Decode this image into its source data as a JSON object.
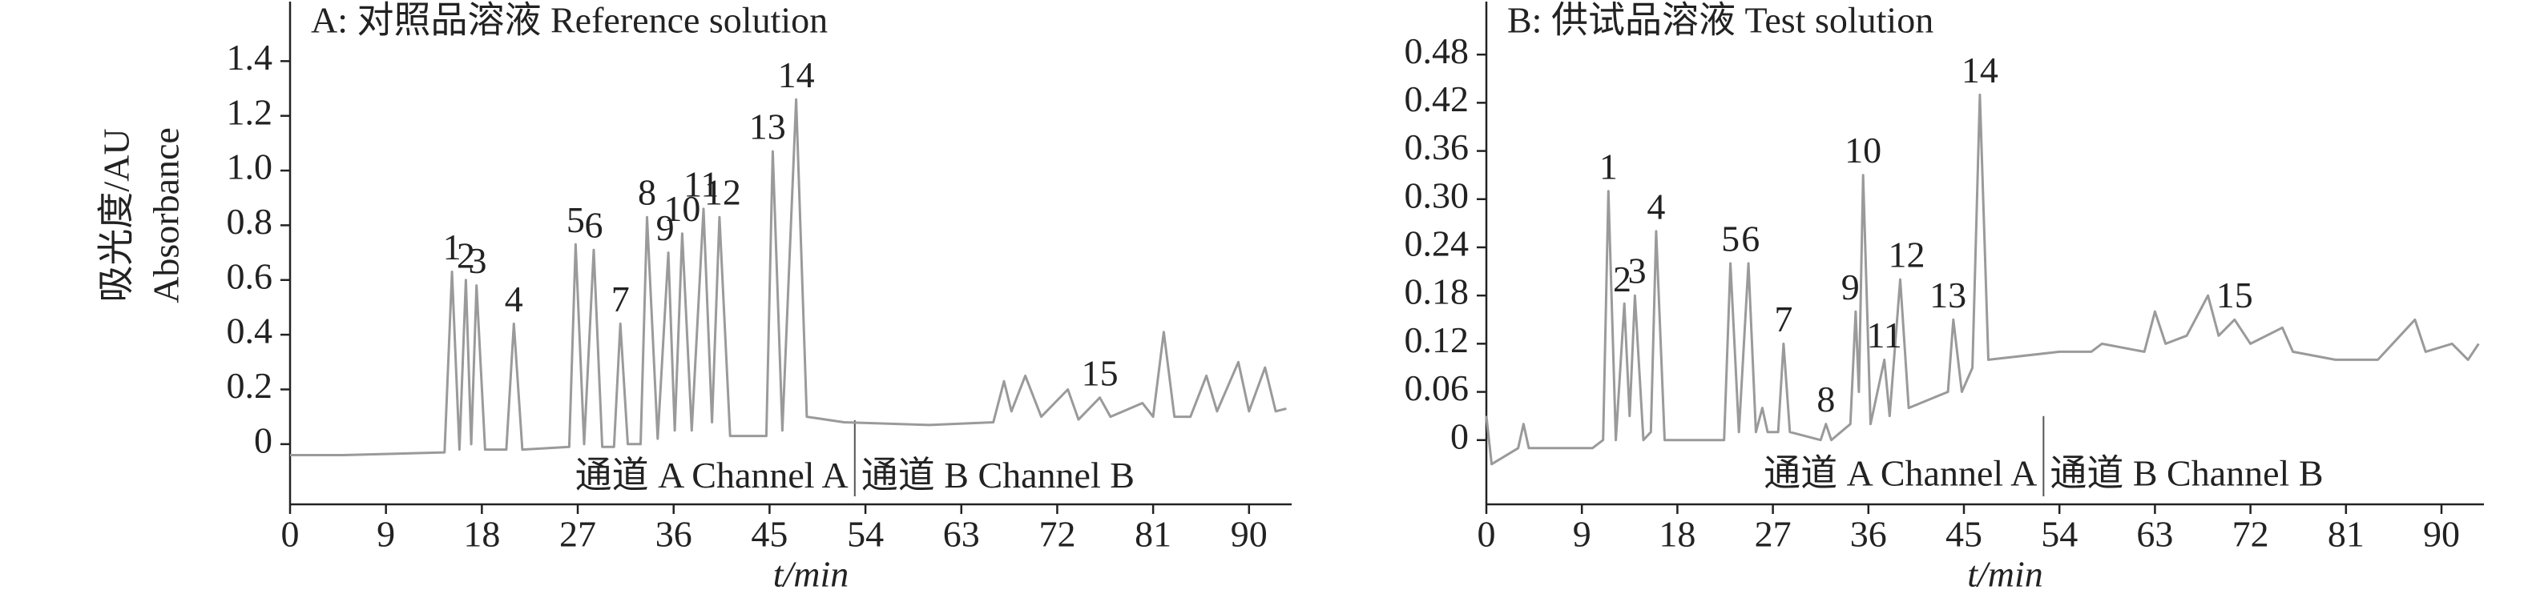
{
  "chart_data": [
    {
      "type": "line",
      "title": "A: 对照品溶液 Reference solution",
      "ylabel": [
        "吸光度/AU",
        "Absorbance"
      ],
      "xlabel": "t/min",
      "xlim": [
        0,
        94
      ],
      "xticks": [
        0,
        9,
        18,
        27,
        36,
        45,
        54,
        63,
        72,
        81,
        90
      ],
      "ylim": [
        -0.22,
        1.6
      ],
      "yticks": [
        0,
        0.2,
        0.4,
        0.6,
        0.8,
        {
          "value": 1,
          "label": "1.0"
        },
        1.2,
        1.4
      ],
      "channel_boundary": 53,
      "channel_labels": [
        "通道 A Channel A",
        "通道 B Channel B"
      ],
      "series": [
        {
          "color": "#9a9a9a",
          "x": [
            0,
            5,
            14.5,
            15.2,
            15.9,
            16.5,
            17,
            17.5,
            18.3,
            20.3,
            21,
            21.8,
            26.2,
            26.8,
            27.6,
            28.5,
            29.3,
            30.4,
            31,
            31.7,
            32.9,
            33.5,
            34.5,
            35.5,
            36.1,
            36.8,
            37.7,
            38.8,
            39.6,
            40.3,
            41.3,
            44.7,
            45.3,
            46.2,
            47.5,
            48.5,
            52,
            60,
            66,
            67,
            67.7,
            69,
            70.5,
            73,
            74,
            76,
            77,
            80,
            81,
            82,
            83,
            84.5,
            86,
            87,
            89,
            90,
            91.5,
            92.5,
            93.5
          ],
          "values": [
            -0.04,
            -0.04,
            -0.03,
            0.63,
            -0.02,
            0.6,
            0.0,
            0.58,
            -0.02,
            -0.02,
            0.44,
            -0.02,
            -0.01,
            0.73,
            0.0,
            0.71,
            -0.01,
            -0.01,
            0.44,
            0.0,
            0.0,
            0.83,
            0.02,
            0.7,
            0.05,
            0.77,
            0.05,
            0.86,
            0.08,
            0.83,
            0.03,
            0.03,
            1.07,
            0.05,
            1.26,
            0.1,
            0.08,
            0.07,
            0.08,
            0.23,
            0.12,
            0.25,
            0.1,
            0.2,
            0.09,
            0.17,
            0.1,
            0.15,
            0.1,
            0.41,
            0.1,
            0.1,
            0.25,
            0.12,
            0.3,
            0.12,
            0.28,
            0.12,
            0.13
          ]
        }
      ],
      "peaks": [
        {
          "label": "1",
          "time": 15.2,
          "height": 0.63
        },
        {
          "label": "2",
          "time": 16.5,
          "height": 0.6
        },
        {
          "label": "3",
          "time": 17.6,
          "height": 0.58
        },
        {
          "label": "4",
          "time": 21,
          "height": 0.44
        },
        {
          "label": "5",
          "time": 26.8,
          "height": 0.73
        },
        {
          "label": "6",
          "time": 28.5,
          "height": 0.71
        },
        {
          "label": "7",
          "time": 31,
          "height": 0.44
        },
        {
          "label": "8",
          "time": 33.5,
          "height": 0.83
        },
        {
          "label": "9",
          "time": 35.2,
          "height": 0.7
        },
        {
          "label": "10",
          "time": 36.8,
          "height": 0.77
        },
        {
          "label": "11",
          "time": 38.6,
          "height": 0.86
        },
        {
          "label": "12",
          "time": 40.6,
          "height": 0.83
        },
        {
          "label": "13",
          "time": 44.8,
          "height": 1.07
        },
        {
          "label": "14",
          "time": 47.5,
          "height": 1.26
        },
        {
          "label": "15",
          "time": 76,
          "height": 0.17
        }
      ]
    },
    {
      "type": "line",
      "title": "B: 供试品溶液 Test solution",
      "xlabel": "t/min",
      "xlim": [
        0,
        94
      ],
      "xticks": [
        0,
        9,
        18,
        27,
        36,
        45,
        54,
        63,
        72,
        81,
        90
      ],
      "ylim": [
        -0.08,
        0.54
      ],
      "yticks": [
        0,
        0.06,
        0.12,
        0.18,
        0.24,
        {
          "value": 0.3,
          "label": "0.30"
        },
        0.36,
        0.42,
        0.48
      ],
      "channel_boundary": 52.5,
      "channel_labels": [
        "通道 A Channel A",
        "通道 B  Channel B"
      ],
      "series": [
        {
          "color": "#9a9a9a",
          "x": [
            0,
            0.5,
            3,
            3.5,
            4,
            10,
            11,
            11.5,
            12.2,
            13,
            13.5,
            14,
            14.8,
            15.5,
            16,
            16.8,
            22.4,
            23,
            23.8,
            24.7,
            25.4,
            26,
            26.5,
            27.5,
            28,
            28.6,
            31.5,
            32,
            32.5,
            34.3,
            34.8,
            35.1,
            35.5,
            36.2,
            37.5,
            38,
            39,
            39.8,
            43.5,
            44,
            44.8,
            45.8,
            46.5,
            47.3,
            54,
            57,
            58,
            62,
            63,
            64,
            66,
            68,
            69,
            70.5,
            72,
            75,
            76,
            80,
            84,
            87.5,
            88.5,
            91,
            92.5,
            93.5
          ],
          "values": [
            0.03,
            -0.03,
            -0.01,
            0.02,
            -0.01,
            -0.01,
            0.0,
            0.31,
            0.0,
            0.17,
            0.03,
            0.18,
            0.0,
            0.01,
            0.26,
            0.0,
            0.0,
            0.22,
            0.01,
            0.22,
            0.01,
            0.04,
            0.01,
            0.01,
            0.12,
            0.01,
            0.0,
            0.02,
            0.0,
            0.02,
            0.16,
            0.06,
            0.33,
            0.02,
            0.1,
            0.03,
            0.2,
            0.04,
            0.06,
            0.15,
            0.06,
            0.09,
            0.43,
            0.1,
            0.11,
            0.11,
            0.12,
            0.11,
            0.16,
            0.12,
            0.13,
            0.18,
            0.13,
            0.15,
            0.12,
            0.14,
            0.11,
            0.1,
            0.1,
            0.15,
            0.11,
            0.12,
            0.1,
            0.12
          ]
        }
      ],
      "peaks": [
        {
          "label": "1",
          "time": 11.5,
          "height": 0.31
        },
        {
          "label": "2",
          "time": 12.8,
          "height": 0.17
        },
        {
          "label": "3",
          "time": 14.2,
          "height": 0.18
        },
        {
          "label": "4",
          "time": 16,
          "height": 0.26
        },
        {
          "label": "5",
          "time": 23,
          "height": 0.22
        },
        {
          "label": "6",
          "time": 24.9,
          "height": 0.22
        },
        {
          "label": "7",
          "time": 28,
          "height": 0.12
        },
        {
          "label": "8",
          "time": 32,
          "height": 0.02
        },
        {
          "label": "9",
          "time": 34.3,
          "height": 0.16
        },
        {
          "label": "10",
          "time": 35.5,
          "height": 0.33
        },
        {
          "label": "11",
          "time": 37.5,
          "height": 0.1
        },
        {
          "label": "12",
          "time": 39.6,
          "height": 0.2
        },
        {
          "label": "13",
          "time": 43.5,
          "height": 0.15
        },
        {
          "label": "14",
          "time": 46.5,
          "height": 0.43
        },
        {
          "label": "15",
          "time": 70.5,
          "height": 0.15
        }
      ]
    }
  ]
}
